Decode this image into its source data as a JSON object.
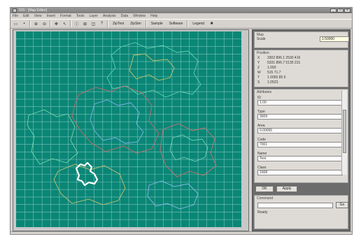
{
  "window": {
    "title": "GIS - [Map Editor]",
    "controls": [
      "_",
      "□",
      "×"
    ]
  },
  "menu": [
    "File",
    "Edit",
    "View",
    "Insert",
    "Format",
    "Tools",
    "Layer",
    "Analysis",
    "Data",
    "Window",
    "Help"
  ],
  "toolbar": {
    "icons": [
      "open-icon",
      "save-icon",
      "zoom-in-icon",
      "zoom-out-icon",
      "pan-icon",
      "select-icon",
      "info-icon",
      "measure-icon",
      "buffer-icon",
      "query-icon"
    ],
    "text_buttons": [
      "ZipTest",
      "ZipSim",
      "Sample",
      "Software",
      "Legend"
    ]
  },
  "map": {
    "background": "#0a8676",
    "grid_color": "#7dc3bb",
    "cells": 26
  },
  "panel": {
    "header": "Map",
    "scale_label": "Scale",
    "scale_value": "1:50000",
    "info_title": "Position",
    "info": [
      {
        "key": "X",
        "value": "3302 896.1 2530 416"
      },
      {
        "key": "Y",
        "value": "5331 896.7 5135 231"
      },
      {
        "key": "Z",
        "value": "1.093"
      },
      {
        "key": "W",
        "value": "515 71.7"
      },
      {
        "key": "T",
        "value": "1 0055 85 6"
      },
      {
        "key": "S",
        "value": "1.0523"
      }
    ],
    "attrs_title": "Attributes",
    "fields": [
      {
        "label": "ID",
        "value": "1.00"
      },
      {
        "label": "Type",
        "value": "3009"
      },
      {
        "label": "Area",
        "value": "0.00055"
      },
      {
        "label": "Code",
        "value": "7001"
      },
      {
        "label": "Name",
        "value": "Test"
      },
      {
        "label": "Class",
        "value": "1008"
      }
    ],
    "ok_label": "OK",
    "apply_label": "Apply",
    "cmd_title": "Command",
    "cmd_button": "Go",
    "status_text": "Ready"
  }
}
